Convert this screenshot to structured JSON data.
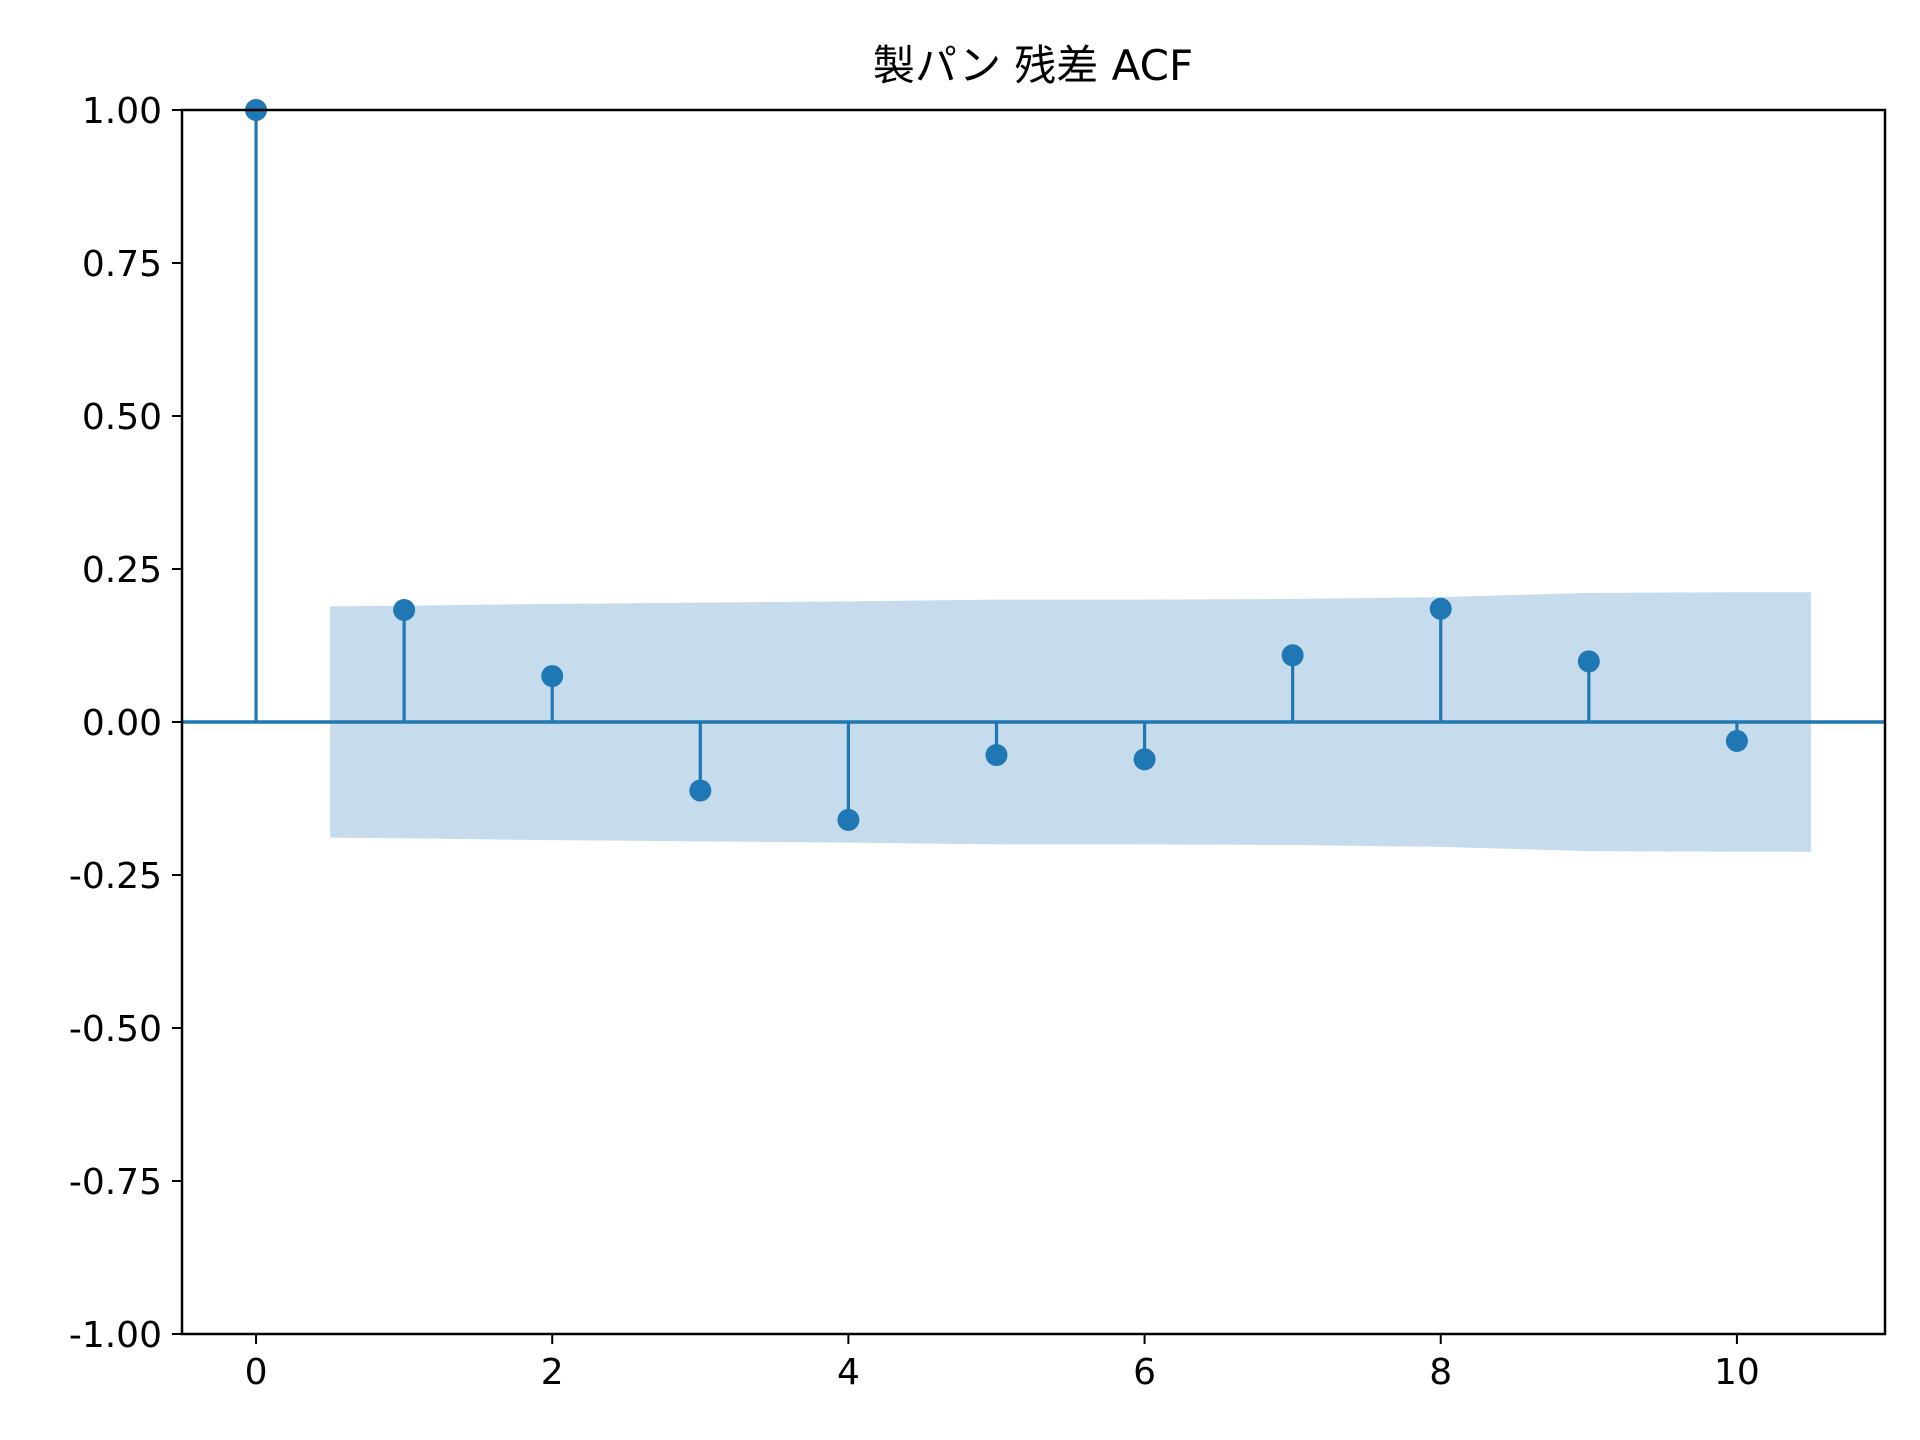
{
  "chart_data": {
    "type": "scatter",
    "subtype": "stem",
    "title": "製パン 残差 ACF",
    "xlabel": "",
    "ylabel": "",
    "x": [
      0,
      1,
      2,
      3,
      4,
      5,
      6,
      7,
      8,
      9,
      10
    ],
    "values": [
      1.0,
      0.183,
      0.075,
      -0.112,
      -0.16,
      -0.054,
      -0.061,
      0.109,
      0.185,
      0.099,
      -0.031
    ],
    "confidence_band": {
      "x": [
        0.5,
        1,
        2,
        3,
        4,
        5,
        6,
        7,
        8,
        9,
        10,
        10.5
      ],
      "upper": [
        0.189,
        0.19,
        0.193,
        0.195,
        0.197,
        0.2,
        0.2,
        0.201,
        0.204,
        0.211,
        0.212,
        0.212
      ],
      "lower": [
        -0.189,
        -0.19,
        -0.193,
        -0.195,
        -0.197,
        -0.2,
        -0.2,
        -0.201,
        -0.204,
        -0.211,
        -0.212,
        -0.212
      ]
    },
    "xlim": [
      -0.5,
      11
    ],
    "ylim": [
      -1.0,
      1.0
    ],
    "xticks": [
      0,
      2,
      4,
      6,
      8,
      10
    ],
    "xtick_labels": [
      "0",
      "2",
      "4",
      "6",
      "8",
      "10"
    ],
    "yticks": [
      1.0,
      0.75,
      0.5,
      0.25,
      0.0,
      -0.25,
      -0.5,
      -0.75,
      -1.0
    ],
    "ytick_labels": [
      "1.00",
      "0.75",
      "0.50",
      "0.25",
      "0.00",
      "-0.25",
      "-0.50",
      "-0.75",
      "-1.00"
    ],
    "grid": false,
    "legend": "none",
    "colors": {
      "series": "#1f77b4",
      "band": "#c6dcec",
      "axes": "#000000"
    }
  }
}
